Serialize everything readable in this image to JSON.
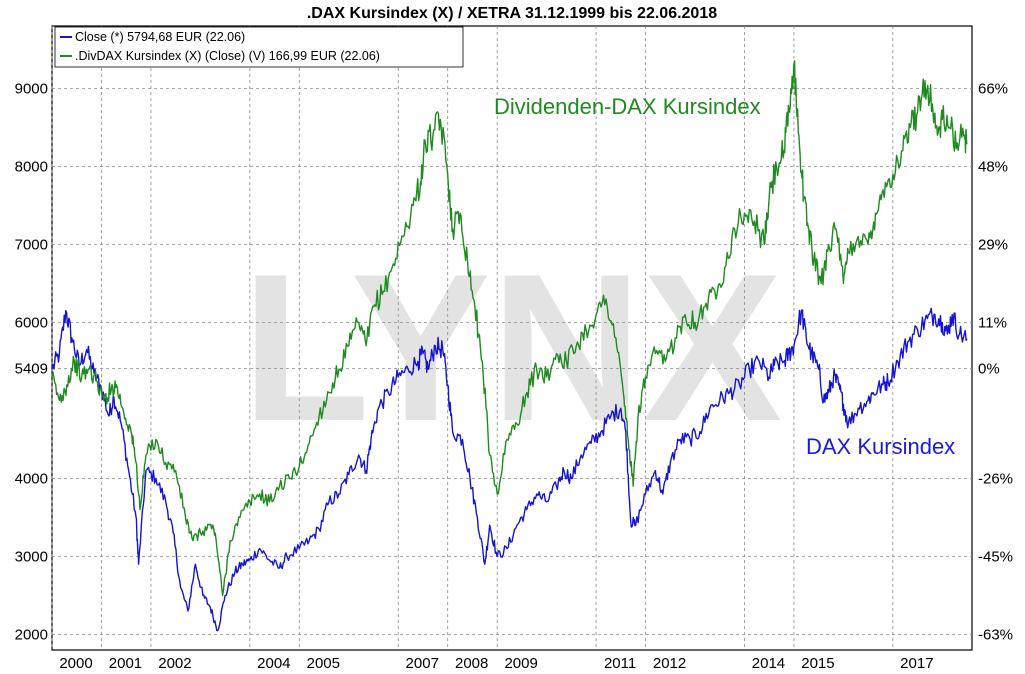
{
  "chart_data": {
    "type": "line",
    "title": ".DAX Kursindex (X) / XETRA 31.12.1999 bis 22.06.2018",
    "watermark": "LYNX",
    "legend": {
      "placement": "top-left",
      "entries": [
        "Close (*) 5794,68 EUR (22.06)",
        ".DivDAX Kursindex (X) (Close) (V) 166,99 EUR (22.06)"
      ]
    },
    "y_left": {
      "range": [
        1800,
        9800
      ],
      "ticks": [
        2000,
        3000,
        4000,
        5409,
        6000,
        7000,
        8000,
        9000
      ],
      "labels": [
        "2000",
        "3000",
        "4000",
        "5409",
        "6000",
        "7000",
        "8000",
        "9000"
      ]
    },
    "y_right": {
      "labels": [
        "66%",
        "48%",
        "29%",
        "11%",
        "0%",
        "-26%",
        "-45%",
        "-63%"
      ],
      "positions": [
        9000,
        8000,
        7000,
        6000,
        5409,
        4000,
        3000,
        2000
      ]
    },
    "x_range": [
      2000.0,
      2018.6
    ],
    "x_ticks": [
      2000,
      2001,
      2002,
      2004,
      2005,
      2007,
      2008,
      2009,
      2011,
      2012,
      2014,
      2015,
      2017
    ],
    "x_tick_labels": [
      "2000",
      "2001",
      "2002",
      "2004",
      "2005",
      "2007",
      "2008",
      "2009",
      "2011",
      "2012",
      "2014",
      "2015",
      "2017"
    ],
    "grid": true,
    "annotations": [
      {
        "text": "Dividenden-DAX Kursindex",
        "color": "#1f8a1f"
      },
      {
        "text": "DAX Kursindex",
        "color": "#1a1adc"
      }
    ],
    "series": [
      {
        "name": "Close (*) 5794,68 EUR (22.06)",
        "color": "#1414d2",
        "x": [
          2000.0,
          2000.15,
          2000.28,
          2000.4,
          2000.55,
          2000.7,
          2000.85,
          2001.0,
          2001.15,
          2001.25,
          2001.4,
          2001.55,
          2001.7,
          2001.75,
          2001.9,
          2002.1,
          2002.3,
          2002.45,
          2002.6,
          2002.75,
          2002.9,
          2003.05,
          2003.2,
          2003.35,
          2003.5,
          2003.7,
          2003.85,
          2004.0,
          2004.2,
          2004.4,
          2004.6,
          2004.75,
          2005.0,
          2005.2,
          2005.4,
          2005.6,
          2005.8,
          2006.0,
          2006.2,
          2006.35,
          2006.45,
          2006.6,
          2006.8,
          2007.0,
          2007.2,
          2007.4,
          2007.5,
          2007.6,
          2007.75,
          2007.9,
          2008.0,
          2008.1,
          2008.3,
          2008.45,
          2008.6,
          2008.75,
          2008.85,
          2009.0,
          2009.2,
          2009.4,
          2009.6,
          2009.8,
          2010.0,
          2010.2,
          2010.35,
          2010.5,
          2010.7,
          2010.9,
          2011.1,
          2011.3,
          2011.5,
          2011.6,
          2011.7,
          2011.8,
          2012.0,
          2012.2,
          2012.35,
          2012.5,
          2012.7,
          2012.9,
          2013.1,
          2013.3,
          2013.5,
          2013.7,
          2013.9,
          2014.1,
          2014.3,
          2014.5,
          2014.6,
          2014.8,
          2014.9,
          2015.0,
          2015.15,
          2015.25,
          2015.35,
          2015.5,
          2015.6,
          2015.7,
          2015.8,
          2015.9,
          2016.0,
          2016.1,
          2016.3,
          2016.5,
          2016.6,
          2016.8,
          2016.9,
          2017.1,
          2017.3,
          2017.5,
          2017.7,
          2017.85,
          2018.0,
          2018.1,
          2018.2,
          2018.35,
          2018.5
        ],
        "values": [
          5400,
          5600,
          6150,
          5800,
          5450,
          5650,
          5350,
          5150,
          4800,
          5050,
          4700,
          4100,
          3500,
          2900,
          4100,
          4000,
          3700,
          3300,
          2600,
          2300,
          2900,
          2500,
          2350,
          2050,
          2500,
          2800,
          2900,
          2950,
          3100,
          2950,
          2850,
          3000,
          3100,
          3200,
          3350,
          3700,
          3800,
          4050,
          4300,
          4100,
          4500,
          4900,
          5100,
          5300,
          5400,
          5500,
          5600,
          5400,
          5700,
          5650,
          5200,
          4600,
          4500,
          4000,
          3500,
          2900,
          3400,
          3000,
          3100,
          3400,
          3600,
          3800,
          3700,
          3900,
          4100,
          4000,
          4300,
          4450,
          4600,
          4800,
          4900,
          4600,
          3450,
          3400,
          3800,
          4100,
          3800,
          4200,
          4500,
          4500,
          4600,
          4900,
          5000,
          5100,
          5200,
          5400,
          5500,
          5300,
          5450,
          5500,
          5600,
          5700,
          6150,
          5800,
          5600,
          5400,
          5000,
          5100,
          5300,
          5200,
          4950,
          4700,
          4900,
          5000,
          5100,
          5200,
          5250,
          5500,
          5750,
          5900,
          6050,
          6100,
          6000,
          5850,
          6100,
          5850,
          5790
        ]
      },
      {
        "name": ".DivDAX Kursindex (X) (Close) (V) 166,99 EUR (22.06)",
        "color": "#1f8a1f",
        "x": [
          2000.0,
          2000.15,
          2000.3,
          2000.45,
          2000.6,
          2000.75,
          2000.9,
          2001.05,
          2001.2,
          2001.3,
          2001.45,
          2001.6,
          2001.7,
          2001.78,
          2001.9,
          2002.1,
          2002.3,
          2002.5,
          2002.7,
          2002.85,
          2003.0,
          2003.2,
          2003.3,
          2003.45,
          2003.6,
          2003.8,
          2004.0,
          2004.2,
          2004.4,
          2004.6,
          2004.8,
          2005.0,
          2005.2,
          2005.4,
          2005.6,
          2005.8,
          2006.0,
          2006.2,
          2006.35,
          2006.5,
          2006.7,
          2006.9,
          2007.1,
          2007.3,
          2007.45,
          2007.55,
          2007.7,
          2007.85,
          2008.0,
          2008.1,
          2008.25,
          2008.4,
          2008.55,
          2008.7,
          2008.85,
          2009.0,
          2009.2,
          2009.4,
          2009.6,
          2009.8,
          2010.0,
          2010.2,
          2010.4,
          2010.6,
          2010.8,
          2011.0,
          2011.2,
          2011.4,
          2011.55,
          2011.65,
          2011.75,
          2011.85,
          2012.0,
          2012.2,
          2012.4,
          2012.6,
          2012.8,
          2013.0,
          2013.2,
          2013.4,
          2013.6,
          2013.8,
          2014.0,
          2014.2,
          2014.4,
          2014.5,
          2014.65,
          2014.8,
          2014.9,
          2015.0,
          2015.1,
          2015.2,
          2015.3,
          2015.4,
          2015.55,
          2015.7,
          2015.85,
          2016.0,
          2016.1,
          2016.3,
          2016.5,
          2016.65,
          2016.8,
          2017.0,
          2017.2,
          2017.35,
          2017.5,
          2017.65,
          2017.8,
          2017.9,
          2018.0,
          2018.15,
          2018.3,
          2018.45,
          2018.5
        ],
        "values": [
          5300,
          5000,
          5200,
          5500,
          5300,
          5400,
          5250,
          5000,
          5150,
          5200,
          4850,
          4600,
          4200,
          3600,
          4300,
          4500,
          4200,
          4100,
          3500,
          3200,
          3300,
          3400,
          3300,
          2500,
          3200,
          3500,
          3700,
          3800,
          3700,
          3900,
          4000,
          4150,
          4450,
          4800,
          5100,
          5400,
          5700,
          6000,
          5700,
          6200,
          6400,
          6750,
          7100,
          7500,
          7800,
          8300,
          8400,
          8600,
          7900,
          7200,
          7400,
          6800,
          6200,
          5500,
          4300,
          3800,
          4500,
          4700,
          5100,
          5400,
          5300,
          5600,
          5500,
          5700,
          5900,
          6100,
          6300,
          5800,
          5100,
          4500,
          3900,
          4800,
          5300,
          5600,
          5500,
          5800,
          6100,
          6000,
          6200,
          6400,
          6700,
          7200,
          7400,
          7300,
          7000,
          7600,
          8000,
          8200,
          8700,
          9300,
          8400,
          7600,
          7200,
          6800,
          6500,
          7000,
          7200,
          6500,
          6900,
          7100,
          7000,
          7400,
          7700,
          7900,
          8200,
          8500,
          8700,
          9100,
          8800,
          8400,
          8600,
          8500,
          8300,
          8400,
          8300
        ]
      }
    ]
  }
}
